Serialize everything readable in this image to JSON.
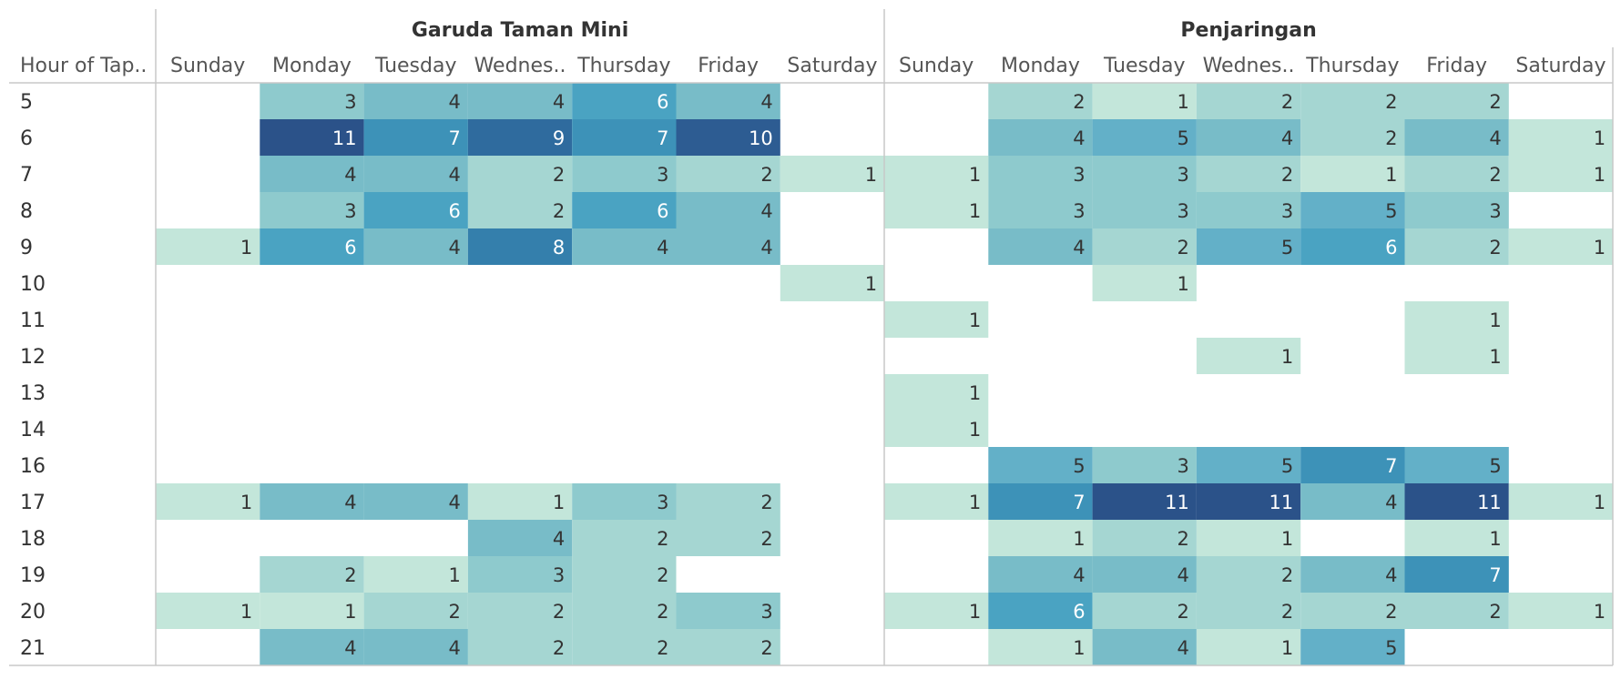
{
  "chart_data": {
    "type": "heatmap",
    "row_header": "Hour of Tap..",
    "rows": [
      "5",
      "6",
      "7",
      "8",
      "9",
      "10",
      "11",
      "12",
      "13",
      "14",
      "16",
      "17",
      "18",
      "19",
      "20",
      "21"
    ],
    "columns": [
      "Sunday",
      "Monday",
      "Tuesday",
      "Wednes..",
      "Thursday",
      "Friday",
      "Saturday"
    ],
    "panels": [
      {
        "name": "Garuda Taman Mini",
        "values": [
          [
            null,
            3,
            4,
            4,
            6,
            4,
            null
          ],
          [
            null,
            11,
            7,
            9,
            7,
            10,
            null
          ],
          [
            null,
            4,
            4,
            2,
            3,
            2,
            1
          ],
          [
            null,
            3,
            6,
            2,
            6,
            4,
            null
          ],
          [
            1,
            6,
            4,
            8,
            4,
            4,
            null
          ],
          [
            null,
            null,
            null,
            null,
            null,
            null,
            1
          ],
          [
            null,
            null,
            null,
            null,
            null,
            null,
            null
          ],
          [
            null,
            null,
            null,
            null,
            null,
            null,
            null
          ],
          [
            null,
            null,
            null,
            null,
            null,
            null,
            null
          ],
          [
            null,
            null,
            null,
            null,
            null,
            null,
            null
          ],
          [
            null,
            null,
            null,
            null,
            null,
            null,
            null
          ],
          [
            1,
            4,
            4,
            1,
            3,
            2,
            null
          ],
          [
            null,
            null,
            null,
            4,
            2,
            2,
            null
          ],
          [
            null,
            2,
            1,
            3,
            2,
            null,
            null
          ],
          [
            1,
            1,
            2,
            2,
            2,
            3,
            null
          ],
          [
            null,
            4,
            4,
            2,
            2,
            2,
            null
          ]
        ]
      },
      {
        "name": "Penjaringan",
        "values": [
          [
            null,
            2,
            1,
            2,
            2,
            2,
            null
          ],
          [
            null,
            4,
            5,
            4,
            2,
            4,
            1
          ],
          [
            1,
            3,
            3,
            2,
            1,
            2,
            1
          ],
          [
            1,
            3,
            3,
            3,
            5,
            3,
            null
          ],
          [
            null,
            4,
            2,
            5,
            6,
            2,
            1
          ],
          [
            null,
            null,
            1,
            null,
            null,
            null,
            null
          ],
          [
            1,
            null,
            null,
            null,
            null,
            1,
            null
          ],
          [
            null,
            null,
            null,
            1,
            null,
            1,
            null
          ],
          [
            1,
            null,
            null,
            null,
            null,
            null,
            null
          ],
          [
            1,
            null,
            null,
            null,
            null,
            null,
            null
          ],
          [
            null,
            5,
            3,
            5,
            7,
            5,
            null
          ],
          [
            1,
            7,
            11,
            11,
            4,
            11,
            1
          ],
          [
            null,
            1,
            2,
            1,
            null,
            1,
            null
          ],
          [
            null,
            4,
            4,
            2,
            4,
            7,
            null
          ],
          [
            1,
            6,
            2,
            2,
            2,
            2,
            1
          ],
          [
            null,
            1,
            4,
            1,
            5,
            null,
            null
          ]
        ]
      }
    ],
    "color_scale": {
      "min": 1,
      "max": 11,
      "colors": [
        "#c3e6da",
        "#a5d6d2",
        "#8ecacd",
        "#78bcc8",
        "#63b0c8",
        "#4aa3c2",
        "#3d92b8",
        "#347fac",
        "#2f6b9e",
        "#2d5c92",
        "#2b5289"
      ]
    }
  }
}
